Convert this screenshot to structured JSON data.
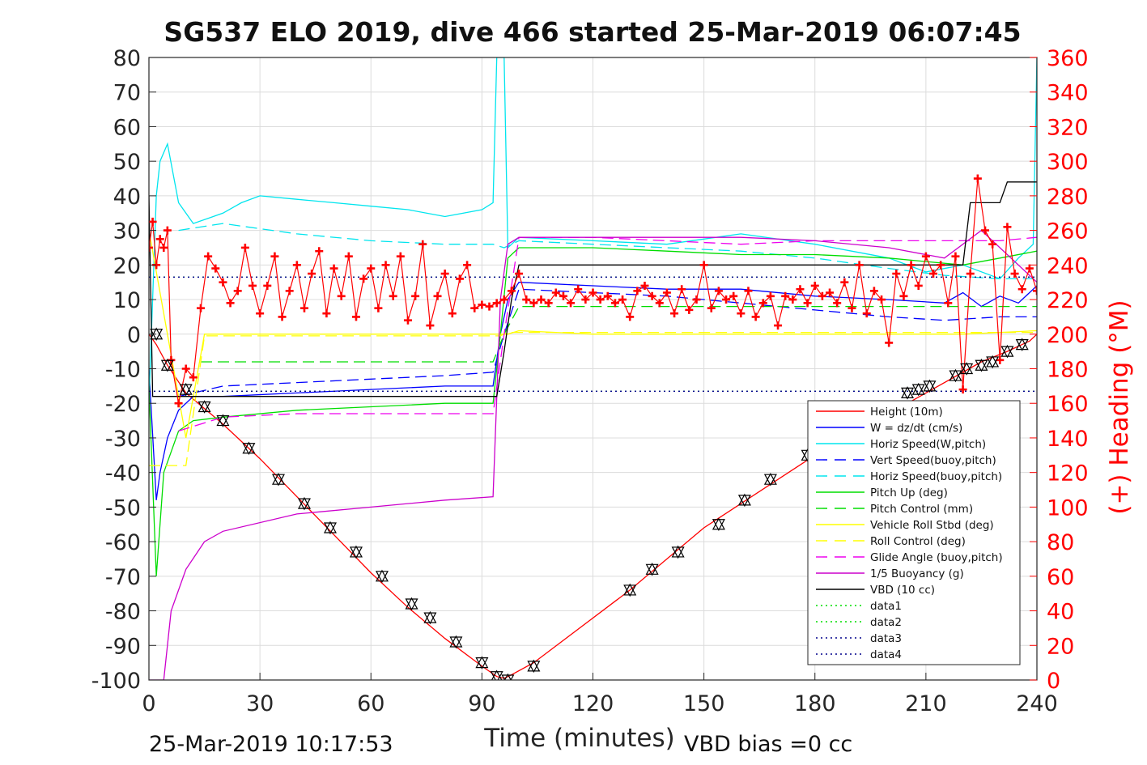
{
  "chart_data": {
    "type": "line",
    "title": "SG537 ELO 2019, dive 466 started 25-Mar-2019 06:07:45",
    "xlabel": "Time (minutes)",
    "ylabel": "",
    "y2label": "(+) Heading (°M)",
    "xlim": [
      0,
      240
    ],
    "ylim": [
      -100,
      80
    ],
    "y2lim": [
      0,
      360
    ],
    "xticks": [
      "0",
      "30",
      "60",
      "90",
      "120",
      "150",
      "180",
      "210",
      "240"
    ],
    "yticks": [
      "80",
      "70",
      "60",
      "50",
      "40",
      "30",
      "20",
      "10",
      "0",
      "-10",
      "-20",
      "-30",
      "-40",
      "-50",
      "-60",
      "-70",
      "-80",
      "-90",
      "-100"
    ],
    "y2ticks": [
      "360",
      "340",
      "320",
      "300",
      "280",
      "260",
      "240",
      "220",
      "200",
      "180",
      "160",
      "140",
      "120",
      "100",
      "80",
      "60",
      "40",
      "20",
      "0"
    ],
    "grid": true,
    "legend_position": "bottom-right",
    "footer_left": "25-Mar-2019 10:17:53",
    "footer_right": "VBD bias =0 cc",
    "series": [
      {
        "name": "Height (10m)",
        "color": "#ff0000",
        "style": "solid",
        "x": [
          0,
          2,
          5,
          10,
          20,
          30,
          40,
          50,
          60,
          70,
          80,
          90,
          94,
          96,
          98,
          104,
          130,
          150,
          180,
          210,
          225,
          232,
          238,
          240
        ],
        "y": [
          0,
          -3,
          -9,
          -17,
          -26,
          -36,
          -47,
          -58,
          -69,
          -79,
          -88,
          -96,
          -99,
          -99.5,
          -98.5,
          -95,
          -74,
          -56,
          -35,
          -17,
          -8,
          -5,
          -2,
          0
        ]
      },
      {
        "name": "W = dz/dt (cm/s)",
        "color": "#0000ff",
        "style": "solid",
        "x": [
          0,
          2,
          3,
          5,
          8,
          12,
          20,
          40,
          60,
          80,
          93,
          95,
          97,
          100,
          120,
          140,
          160,
          180,
          200,
          215,
          220,
          225,
          230,
          235,
          240
        ],
        "y": [
          -10,
          -48,
          -40,
          -30,
          -22,
          -18,
          -18,
          -17,
          -16,
          -15,
          -15,
          0,
          10,
          15,
          14,
          13,
          13,
          11,
          10,
          9,
          12,
          8,
          11,
          9,
          14
        ]
      },
      {
        "name": "Horiz Speed(W,pitch)",
        "color": "#00e5ee",
        "style": "solid",
        "x": [
          0,
          2,
          3,
          5,
          8,
          12,
          20,
          25,
          30,
          40,
          50,
          60,
          70,
          80,
          90,
          93,
          94,
          96,
          97,
          100,
          120,
          140,
          160,
          180,
          200,
          210,
          220,
          230,
          235,
          239,
          240
        ],
        "y": [
          -20,
          40,
          50,
          55,
          38,
          32,
          35,
          38,
          40,
          39,
          38,
          37,
          36,
          34,
          36,
          38,
          80,
          80,
          25,
          28,
          27,
          26,
          29,
          26,
          22,
          18,
          20,
          16,
          22,
          26,
          80
        ]
      },
      {
        "name": "Vert Speed(buoy,pitch)",
        "color": "#0000ff",
        "style": "dashed",
        "x": [
          8,
          20,
          40,
          60,
          80,
          93,
          96,
          100,
          120,
          140,
          160,
          180,
          200,
          215,
          230,
          240
        ],
        "y": [
          -18,
          -15,
          -14,
          -13,
          -12,
          -11,
          0,
          13,
          12,
          11,
          9,
          7,
          5,
          4,
          5,
          5
        ]
      },
      {
        "name": "Horiz Speed(buoy,pitch)",
        "color": "#00e5ee",
        "style": "dashed",
        "x": [
          8,
          20,
          40,
          60,
          80,
          93,
          96,
          100,
          120,
          140,
          160,
          180,
          200,
          215,
          230,
          240
        ],
        "y": [
          30,
          32,
          29,
          27,
          26,
          26,
          25,
          27,
          26,
          25,
          24,
          22,
          19,
          17,
          16,
          16
        ]
      },
      {
        "name": "Pitch Up (deg)",
        "color": "#00dd00",
        "style": "solid",
        "x": [
          0,
          2,
          4,
          8,
          12,
          20,
          40,
          60,
          80,
          93,
          95,
          97,
          100,
          120,
          140,
          160,
          180,
          200,
          210,
          220,
          230,
          240
        ],
        "y": [
          -15,
          -70,
          -40,
          -28,
          -25,
          -24,
          -22,
          -21,
          -20,
          -20,
          0,
          22,
          25,
          25,
          24,
          23,
          23,
          22,
          21,
          20,
          22,
          24
        ]
      },
      {
        "name": "Pitch Control (mm)",
        "color": "#00dd00",
        "style": "dashed",
        "x": [
          14,
          20,
          40,
          60,
          80,
          93,
          96,
          100,
          120,
          140,
          160,
          180,
          200,
          240
        ],
        "y": [
          -8,
          -8,
          -8,
          -8,
          -8,
          -8,
          0,
          8,
          8,
          8,
          8,
          8,
          8,
          8
        ]
      },
      {
        "name": "Vehicle Roll Stbd (deg)",
        "color": "#ffff00",
        "style": "solid",
        "x": [
          0,
          10,
          15,
          20,
          40,
          60,
          80,
          95,
          97,
          100,
          120,
          140,
          160,
          180,
          200,
          220,
          240
        ],
        "y": [
          30,
          -30,
          0,
          0,
          0,
          0,
          0,
          0,
          0,
          1,
          0,
          0,
          0,
          0,
          0,
          0,
          1
        ]
      },
      {
        "name": "Roll Control (deg)",
        "color": "#ffff00",
        "style": "dashed",
        "x": [
          0,
          10,
          15,
          20,
          40,
          60,
          80,
          95,
          97,
          100,
          120,
          140,
          160,
          180,
          200,
          220,
          240
        ],
        "y": [
          -38,
          -38,
          -0.5,
          -0.5,
          -0.5,
          -0.5,
          -0.5,
          -0.5,
          0.5,
          0.5,
          0.5,
          0.5,
          0.5,
          0.5,
          0.5,
          0.5,
          0.5
        ]
      },
      {
        "name": "Glide Angle (buoy,pitch)",
        "color": "#ee00ee",
        "style": "dashed",
        "x": [
          8,
          20,
          40,
          60,
          80,
          93,
          96,
          100,
          120,
          140,
          160,
          180,
          200,
          215,
          230,
          240
        ],
        "y": [
          -28,
          -24,
          -23,
          -23,
          -23,
          -23,
          0,
          28,
          28,
          27,
          26,
          27,
          27,
          27,
          27,
          28
        ]
      },
      {
        "name": "1/5 Buoyancy (g)",
        "color": "#cc00cc",
        "style": "solid",
        "x": [
          0,
          2,
          4,
          6,
          10,
          15,
          20,
          40,
          60,
          80,
          93,
          95,
          97,
          100,
          120,
          140,
          160,
          180,
          200,
          215,
          225,
          240
        ],
        "y": [
          -100,
          -100,
          -100,
          -80,
          -68,
          -60,
          -57,
          -52,
          -50,
          -48,
          -47,
          10,
          26,
          28,
          28,
          28,
          28,
          27,
          25,
          22,
          30,
          15
        ]
      },
      {
        "name": "VBD (10 cc)",
        "color": "#000000",
        "style": "solid",
        "x": [
          0,
          1,
          2,
          5,
          20,
          40,
          60,
          80,
          94,
          96,
          98,
          100,
          120,
          150,
          200,
          220,
          222,
          230,
          232,
          240
        ],
        "y": [
          40,
          -18,
          -18,
          -18,
          -18,
          -18,
          -18,
          -18,
          -18,
          -5,
          10,
          20,
          20,
          20,
          20,
          20,
          38,
          38,
          44,
          44
        ]
      },
      {
        "name": "data1",
        "color": "#00dd00",
        "style": "dotted",
        "x": [
          0,
          240
        ],
        "y": [
          16.5,
          16.5
        ]
      },
      {
        "name": "data2",
        "color": "#00dd00",
        "style": "dotted",
        "x": [
          0,
          240
        ],
        "y": [
          -16.5,
          -16.5
        ]
      },
      {
        "name": "data3",
        "color": "#00008b",
        "style": "dotted",
        "x": [
          0,
          240
        ],
        "y": [
          16.5,
          16.5
        ]
      },
      {
        "name": "data4",
        "color": "#00008b",
        "style": "dotted",
        "x": [
          0,
          240
        ],
        "y": [
          -16.5,
          -16.5
        ]
      }
    ],
    "heading_series": {
      "axis": "right",
      "color": "#ff0000",
      "marker": "+",
      "x": [
        0,
        1,
        2,
        3,
        4,
        5,
        6,
        8,
        10,
        12,
        14,
        16,
        18,
        20,
        22,
        24,
        26,
        28,
        30,
        32,
        34,
        36,
        38,
        40,
        42,
        44,
        46,
        48,
        50,
        52,
        54,
        56,
        58,
        60,
        62,
        64,
        66,
        68,
        70,
        72,
        74,
        76,
        78,
        80,
        82,
        84,
        86,
        88,
        90,
        92,
        94,
        96,
        98,
        100,
        102,
        104,
        106,
        108,
        110,
        112,
        114,
        116,
        118,
        120,
        122,
        124,
        126,
        128,
        130,
        132,
        134,
        136,
        138,
        140,
        142,
        144,
        146,
        148,
        150,
        152,
        154,
        156,
        158,
        160,
        162,
        164,
        166,
        168,
        170,
        172,
        174,
        176,
        178,
        180,
        182,
        184,
        186,
        188,
        190,
        192,
        194,
        196,
        198,
        200,
        202,
        204,
        206,
        208,
        210,
        212,
        214,
        216,
        218,
        220,
        222,
        224,
        226,
        228,
        230,
        232,
        234,
        236,
        238,
        240
      ],
      "y": [
        250,
        265,
        240,
        255,
        250,
        260,
        185,
        160,
        180,
        175,
        215,
        245,
        238,
        230,
        218,
        225,
        250,
        228,
        212,
        228,
        245,
        210,
        225,
        240,
        215,
        235,
        248,
        212,
        238,
        222,
        245,
        210,
        232,
        238,
        215,
        240,
        222,
        245,
        208,
        222,
        252,
        205,
        222,
        235,
        212,
        232,
        240,
        215,
        217,
        216,
        218,
        220,
        225,
        235,
        220,
        218,
        220,
        218,
        224,
        222,
        218,
        226,
        220,
        224,
        220,
        222,
        218,
        220,
        210,
        225,
        228,
        222,
        218,
        224,
        212,
        226,
        214,
        220,
        240,
        215,
        225,
        220,
        222,
        212,
        225,
        210,
        218,
        222,
        205,
        222,
        220,
        226,
        218,
        228,
        222,
        224,
        218,
        230,
        215,
        240,
        212,
        225,
        220,
        195,
        235,
        222,
        240,
        228,
        245,
        235,
        240,
        218,
        245,
        168,
        235,
        290,
        260,
        252,
        185,
        262,
        235,
        226,
        238,
        225
      ]
    },
    "dive_markers": {
      "color": "#000000",
      "marker": "triangle",
      "x": [
        2,
        5,
        10,
        15,
        20,
        27,
        35,
        42,
        49,
        56,
        63,
        71,
        76,
        83,
        90,
        94,
        97,
        104,
        130,
        136,
        143,
        154,
        161,
        168,
        178,
        188,
        198,
        205,
        208,
        211,
        218,
        221,
        225,
        228,
        232,
        236
      ],
      "y": [
        0,
        -9,
        -16,
        -21,
        -25,
        -33,
        -42,
        -49,
        -56,
        -63,
        -70,
        -78,
        -82,
        -89,
        -95,
        -99,
        -100,
        -96,
        -74,
        -68,
        -63,
        -55,
        -48,
        -42,
        -35,
        -27,
        -21,
        -17,
        -16,
        -15,
        -12,
        -10,
        -9,
        -8,
        -5,
        -3
      ]
    }
  }
}
